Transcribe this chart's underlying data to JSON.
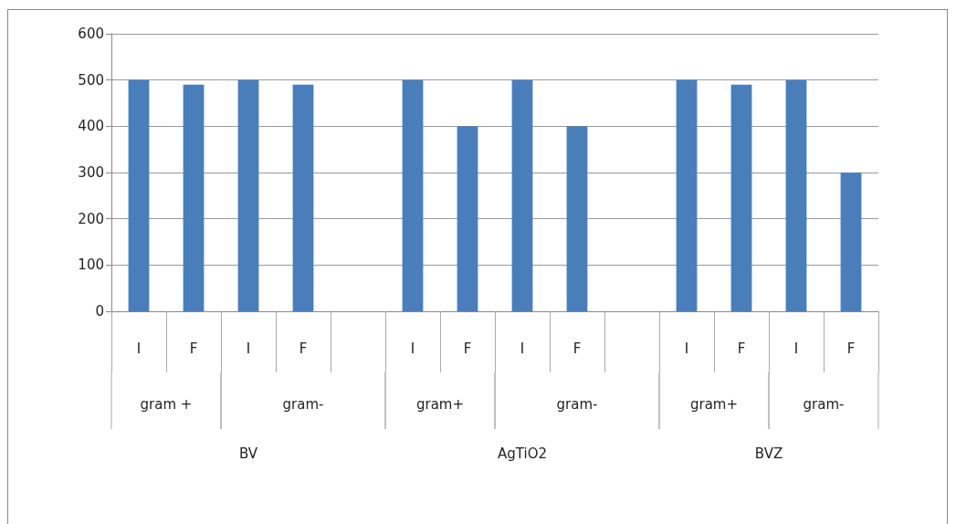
{
  "chart_data": {
    "type": "bar",
    "categories": [
      "I",
      "F",
      "I",
      "F",
      null,
      "I",
      "F",
      "I",
      "F",
      null,
      "I",
      "F",
      "I",
      "F"
    ],
    "values": [
      500,
      490,
      500,
      490,
      null,
      500,
      400,
      500,
      400,
      null,
      500,
      490,
      500,
      300
    ],
    "color": "#4a7ebb",
    "ylim": [
      0,
      600
    ],
    "yticks": [
      0,
      100,
      200,
      300,
      400,
      500,
      600
    ],
    "grid": "y",
    "annotations": [
      "gram +",
      "gram-",
      "gram+",
      "gram-",
      "gram+",
      "gram-",
      "BV",
      "AgTiO2",
      "BVZ"
    ]
  }
}
